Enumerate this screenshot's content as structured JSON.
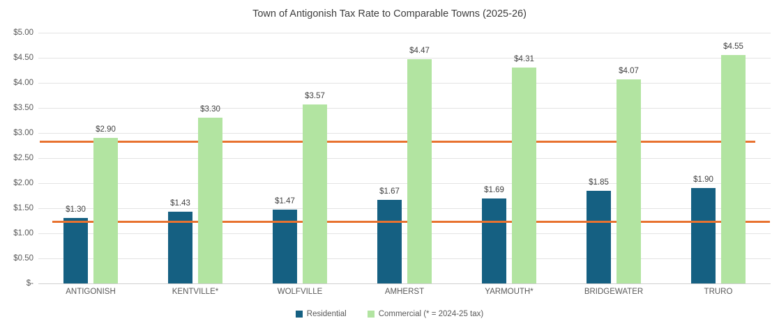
{
  "chart_data": {
    "type": "bar",
    "title": "Town of Antigonish Tax Rate to Comparable Towns (2025-26)",
    "categories": [
      "ANTIGONISH",
      "KENTVILLE*",
      "WOLFVILLE",
      "AMHERST",
      "YARMOUTH*",
      "BRIDGEWATER",
      "TRURO"
    ],
    "series": [
      {
        "name": "Residential",
        "color": "#156082",
        "values": [
          1.3,
          1.43,
          1.47,
          1.67,
          1.69,
          1.85,
          1.9
        ],
        "value_labels": [
          "$1.30",
          "$1.43",
          "$1.47",
          "$1.67",
          "$1.69",
          "$1.85",
          "$1.90"
        ]
      },
      {
        "name": "Commercial (* = 2024-25 tax)",
        "color": "#B2E4A1",
        "values": [
          2.9,
          3.3,
          3.57,
          4.47,
          4.31,
          4.07,
          4.55
        ],
        "value_labels": [
          "$2.90",
          "$3.30",
          "$3.57",
          "$4.47",
          "$4.31",
          "$4.07",
          "$4.55"
        ]
      }
    ],
    "y_axis": {
      "min": 0,
      "max": 5,
      "step": 0.5,
      "tick_labels": [
        "$-",
        "$0.50",
        "$1.00",
        "$1.50",
        "$2.00",
        "$2.50",
        "$3.00",
        "$3.50",
        "$4.00",
        "$4.50",
        "$5.00"
      ]
    },
    "reference_lines": [
      {
        "value": 1.23,
        "color": "#E8722F",
        "x0": 0.019,
        "x1": 0.999
      },
      {
        "value": 2.83,
        "color": "#E8722F",
        "x0": 0.002,
        "x1": 0.979
      }
    ],
    "legend": {
      "position": "bottom",
      "items": [
        {
          "label": "Residential",
          "color": "#156082"
        },
        {
          "label": "Commercial (* = 2024-25 tax)",
          "color": "#B2E4A1"
        }
      ]
    },
    "grid": true
  }
}
